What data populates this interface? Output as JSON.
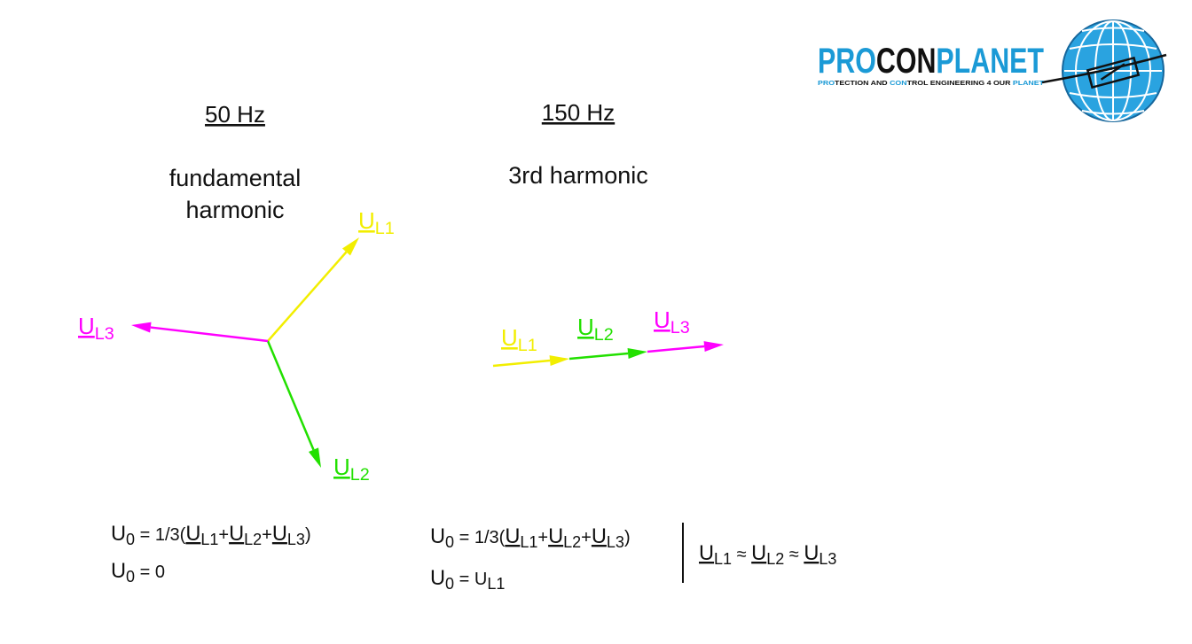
{
  "logo": {
    "wordmark": [
      {
        "text": "PRO",
        "color": "#1b9ad6"
      },
      {
        "text": "CON",
        "color": "#111111"
      },
      {
        "text": "PLANET",
        "color": "#1b9ad6"
      }
    ],
    "tagline": [
      {
        "text": "PRO",
        "color": "#1b9ad6"
      },
      {
        "text": "TECTION AND ",
        "color": "#111111"
      },
      {
        "text": "CON",
        "color": "#1b9ad6"
      },
      {
        "text": "TROL ENGINEERING 4 OUR ",
        "color": "#111111"
      },
      {
        "text": "PLANET",
        "color": "#1b9ad6"
      }
    ]
  },
  "panels": [
    {
      "frequency": "50 Hz",
      "description": [
        "fundamental",
        "harmonic"
      ],
      "phasors": [
        {
          "label": [
            {
              "text": "U",
              "sub": "L1",
              "underline": true
            }
          ],
          "color": "#f2ee00"
        },
        {
          "label": [
            {
              "text": "U",
              "sub": "L2",
              "underline": true
            }
          ],
          "color": "#22e000"
        },
        {
          "label": [
            {
              "text": "U",
              "sub": "L3",
              "underline": true
            }
          ],
          "color": "#ff00ff"
        }
      ],
      "equations": [
        [
          {
            "text": "U",
            "sub": "0"
          },
          {
            "text": " = 1/3("
          },
          {
            "text": "U",
            "sub": "L1",
            "underline": true
          },
          {
            "text": "+"
          },
          {
            "text": "U",
            "sub": "L2",
            "underline": true
          },
          {
            "text": "+"
          },
          {
            "text": "U",
            "sub": "L3",
            "underline": true
          },
          {
            "text": ")"
          }
        ],
        [
          {
            "text": "U",
            "sub": "0"
          },
          {
            "text": " = 0"
          }
        ]
      ]
    },
    {
      "frequency": "150 Hz",
      "description": [
        "3rd harmonic"
      ],
      "phasors": [
        {
          "label": [
            {
              "text": "U",
              "sub": "L1",
              "underline": true
            }
          ],
          "color": "#f2ee00"
        },
        {
          "label": [
            {
              "text": "U",
              "sub": "L2",
              "underline": true
            }
          ],
          "color": "#22e000"
        },
        {
          "label": [
            {
              "text": "U",
              "sub": "L3",
              "underline": true
            }
          ],
          "color": "#ff00ff"
        }
      ],
      "equations": [
        [
          {
            "text": "U",
            "sub": "0"
          },
          {
            "text": " = 1/3("
          },
          {
            "text": "U",
            "sub": "L1",
            "underline": true
          },
          {
            "text": "+"
          },
          {
            "text": "U",
            "sub": "L2",
            "underline": true
          },
          {
            "text": "+"
          },
          {
            "text": "U",
            "sub": "L3",
            "underline": true
          },
          {
            "text": ")"
          }
        ],
        [
          {
            "text": "U",
            "sub": "0"
          },
          {
            "text": " = U",
            "sub": "L1"
          }
        ]
      ],
      "note": [
        {
          "text": "U",
          "sub": "L1",
          "underline": true
        },
        {
          "text": " ≈ "
        },
        {
          "text": "U",
          "sub": "L2",
          "underline": true
        },
        {
          "text": " ≈ "
        },
        {
          "text": "U",
          "sub": "L3",
          "underline": true
        }
      ]
    }
  ]
}
